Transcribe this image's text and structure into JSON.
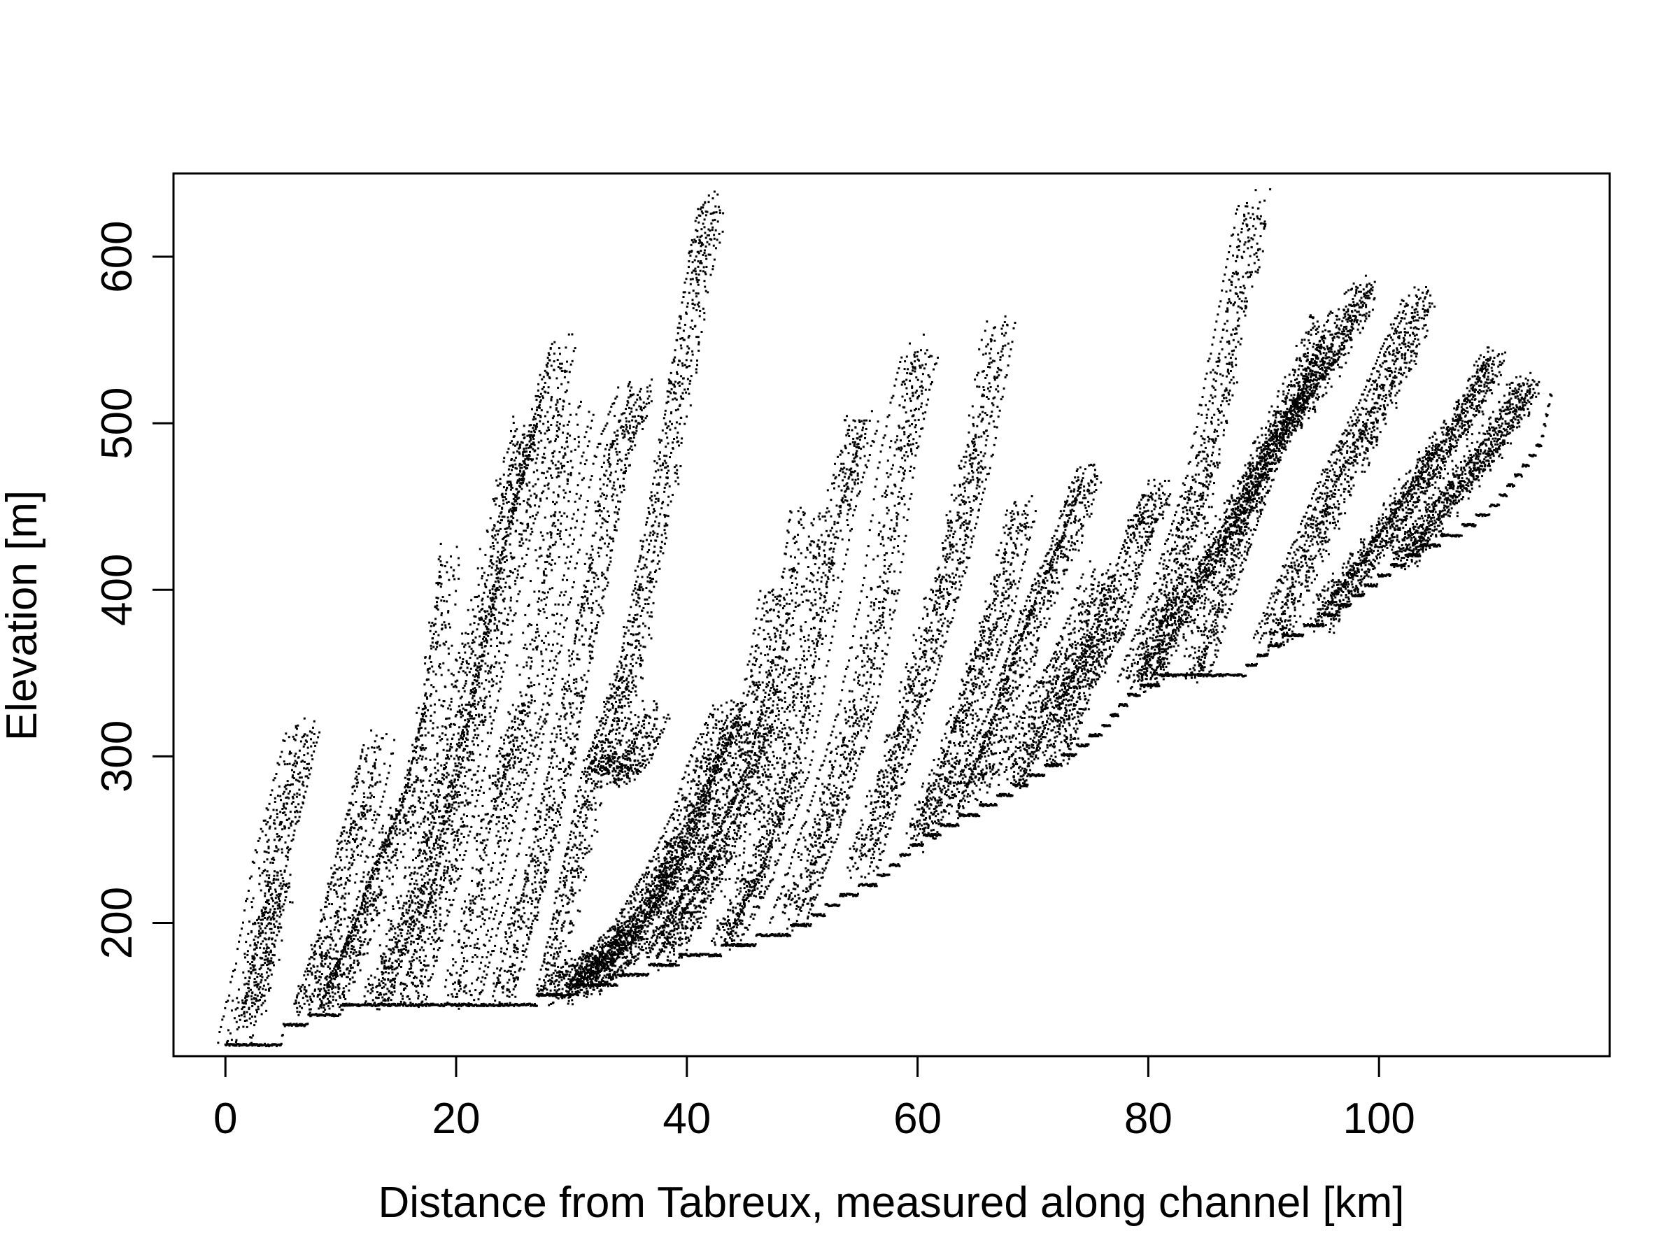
{
  "chart_data": {
    "type": "scatter",
    "title": "",
    "xlabel": "Distance from Tabreux, measured along channel [km]",
    "ylabel": "Elevation [m]",
    "xlim": [
      -4.5,
      120
    ],
    "ylim": [
      120,
      650
    ],
    "x_ticks": [
      0,
      20,
      40,
      60,
      80,
      100
    ],
    "x_tick_labels": [
      "0",
      "20",
      "40",
      "60",
      "80",
      "100"
    ],
    "y_ticks": [
      200,
      300,
      400,
      500,
      600
    ],
    "y_tick_labels": [
      "200",
      "300",
      "400",
      "500",
      "600"
    ],
    "grid": false,
    "legend": "none",
    "point_color": "#000000",
    "main_channel": [
      [
        0,
        128
      ],
      [
        4.8,
        128
      ],
      [
        5,
        138
      ],
      [
        7.5,
        145
      ],
      [
        10,
        150
      ],
      [
        15,
        152
      ],
      [
        18,
        154
      ],
      [
        22,
        155
      ],
      [
        26,
        155
      ],
      [
        28,
        157
      ],
      [
        30,
        162
      ],
      [
        33,
        166
      ],
      [
        36,
        172
      ],
      [
        38,
        178
      ],
      [
        42,
        184
      ],
      [
        45,
        190
      ],
      [
        50,
        200
      ],
      [
        53,
        215
      ],
      [
        57,
        230
      ],
      [
        60,
        250
      ],
      [
        63,
        262
      ],
      [
        66,
        272
      ],
      [
        70,
        290
      ],
      [
        73,
        302
      ],
      [
        76,
        318
      ],
      [
        78,
        335
      ],
      [
        80,
        346
      ],
      [
        82,
        350
      ],
      [
        88,
        351
      ],
      [
        91,
        370
      ],
      [
        95,
        383
      ],
      [
        98,
        398
      ],
      [
        101,
        414
      ],
      [
        104,
        428
      ],
      [
        107,
        437
      ],
      [
        110,
        452
      ],
      [
        112,
        470
      ],
      [
        114,
        490
      ],
      [
        115,
        522
      ]
    ],
    "tributary_profiles": [
      [
        [
          1.0,
          130
        ],
        [
          2.5,
          175
        ],
        [
          4.0,
          235
        ],
        [
          5.5,
          275
        ],
        [
          7.0,
          318
        ]
      ],
      [
        [
          2.5,
          150
        ],
        [
          4.0,
          200
        ],
        [
          5.0,
          225
        ]
      ],
      [
        [
          7.0,
          150
        ],
        [
          9.0,
          190
        ],
        [
          11.0,
          250
        ],
        [
          12.0,
          275
        ],
        [
          13.0,
          308
        ]
      ],
      [
        [
          9.0,
          152
        ],
        [
          12.0,
          200
        ],
        [
          14.0,
          240
        ],
        [
          16.0,
          270
        ],
        [
          18.0,
          330
        ],
        [
          19.5,
          420
        ]
      ],
      [
        [
          13.0,
          152
        ],
        [
          16.0,
          210
        ],
        [
          18.0,
          260
        ],
        [
          20.0,
          320
        ],
        [
          22.0,
          380
        ],
        [
          24.0,
          450
        ],
        [
          26.0,
          497
        ]
      ],
      [
        [
          16.0,
          155
        ],
        [
          19.0,
          230
        ],
        [
          21.0,
          290
        ],
        [
          23.0,
          360
        ],
        [
          25.0,
          430
        ],
        [
          27.0,
          480
        ],
        [
          29.0,
          548
        ]
      ],
      [
        [
          20.0,
          155
        ],
        [
          23.0,
          260
        ],
        [
          26.0,
          330
        ],
        [
          28.0,
          420
        ],
        [
          30.0,
          507
        ]
      ],
      [
        [
          24.0,
          156
        ],
        [
          27.0,
          230
        ],
        [
          30.0,
          330
        ],
        [
          32.0,
          400
        ],
        [
          34.0,
          480
        ],
        [
          36.0,
          520
        ]
      ],
      [
        [
          28.0,
          158
        ],
        [
          32.0,
          290
        ],
        [
          35.0,
          350
        ],
        [
          37.0,
          420
        ],
        [
          39.0,
          500
        ],
        [
          41.0,
          590
        ],
        [
          42.5,
          635
        ]
      ],
      [
        [
          33.0,
          290
        ],
        [
          35.0,
          295
        ],
        [
          37.0,
          325
        ]
      ],
      [
        [
          29.0,
          160
        ],
        [
          32.0,
          175
        ],
        [
          35.0,
          195
        ],
        [
          38.0,
          230
        ],
        [
          40.0,
          260
        ],
        [
          42.0,
          300
        ],
        [
          44.0,
          330
        ]
      ],
      [
        [
          31.0,
          163
        ],
        [
          34.0,
          180
        ],
        [
          37.0,
          205
        ],
        [
          40.0,
          240
        ],
        [
          43.0,
          280
        ],
        [
          46.0,
          320
        ],
        [
          48.0,
          400
        ]
      ],
      [
        [
          38.0,
          180
        ],
        [
          41.0,
          215
        ],
        [
          44.0,
          250
        ],
        [
          47.0,
          300
        ],
        [
          49.0,
          360
        ],
        [
          50.5,
          450
        ]
      ],
      [
        [
          43.0,
          188
        ],
        [
          46.0,
          230
        ],
        [
          49.0,
          290
        ],
        [
          51.0,
          370
        ],
        [
          53.0,
          450
        ],
        [
          55.0,
          500
        ]
      ],
      [
        [
          49.0,
          200
        ],
        [
          52.0,
          260
        ],
        [
          55.0,
          330
        ],
        [
          57.0,
          400
        ],
        [
          58.5,
          480
        ],
        [
          60.5,
          545
        ]
      ],
      [
        [
          55.0,
          232
        ],
        [
          58.0,
          300
        ],
        [
          61.0,
          370
        ],
        [
          63.0,
          420
        ],
        [
          65.0,
          480
        ],
        [
          67.0,
          560
        ]
      ],
      [
        [
          60.0,
          250
        ],
        [
          63.0,
          300
        ],
        [
          65.0,
          350
        ],
        [
          67.0,
          390
        ],
        [
          69.0,
          450
        ]
      ],
      [
        [
          64.0,
          268
        ],
        [
          67.0,
          320
        ],
        [
          70.0,
          380
        ],
        [
          73.0,
          430
        ],
        [
          75.0,
          470
        ]
      ],
      [
        [
          68.0,
          285
        ],
        [
          71.0,
          330
        ],
        [
          74.0,
          370
        ],
        [
          76.0,
          410
        ]
      ],
      [
        [
          72.0,
          300
        ],
        [
          74.0,
          340
        ],
        [
          77.0,
          380
        ],
        [
          79.0,
          430
        ],
        [
          81.0,
          460
        ]
      ],
      [
        [
          79.0,
          345
        ],
        [
          82.0,
          400
        ],
        [
          85.0,
          470
        ],
        [
          87.5,
          560
        ],
        [
          89.5,
          635
        ]
      ],
      [
        [
          84.0,
          351
        ],
        [
          87.0,
          420
        ],
        [
          90.0,
          480
        ],
        [
          93.0,
          520
        ],
        [
          95.0,
          560
        ]
      ],
      [
        [
          80.0,
          348
        ],
        [
          84.0,
          400
        ],
        [
          88.0,
          450
        ],
        [
          92.0,
          500
        ],
        [
          96.0,
          540
        ],
        [
          99.0,
          583
        ]
      ],
      [
        [
          91.0,
          370
        ],
        [
          94.0,
          420
        ],
        [
          97.0,
          470
        ],
        [
          100.0,
          510
        ],
        [
          104.0,
          575
        ]
      ],
      [
        [
          95.0,
          383
        ],
        [
          99.0,
          420
        ],
        [
          103.0,
          460
        ],
        [
          107.0,
          500
        ],
        [
          110.0,
          540
        ]
      ],
      [
        [
          102.0,
          420
        ],
        [
          106.0,
          455
        ],
        [
          110.0,
          490
        ],
        [
          113.0,
          525
        ]
      ]
    ]
  }
}
